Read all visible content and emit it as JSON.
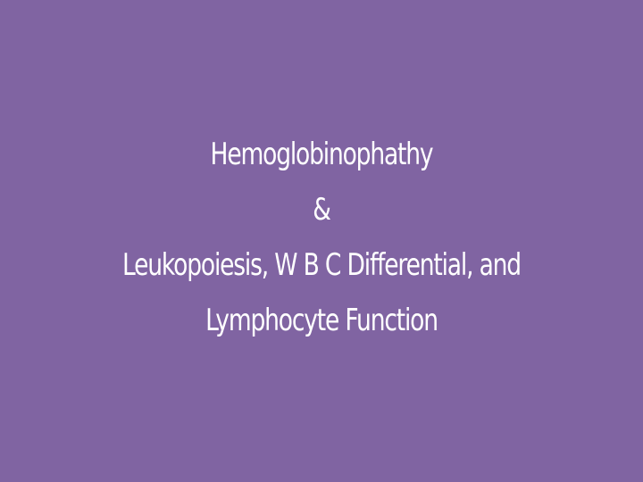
{
  "slide": {
    "background_color": "#8064a2",
    "text_color": "#ffffff",
    "title_lines": [
      "Hemoglobinophathy",
      "&",
      "Leukopoiesis, W B C Differential, and",
      "Lymphocyte Function"
    ]
  }
}
